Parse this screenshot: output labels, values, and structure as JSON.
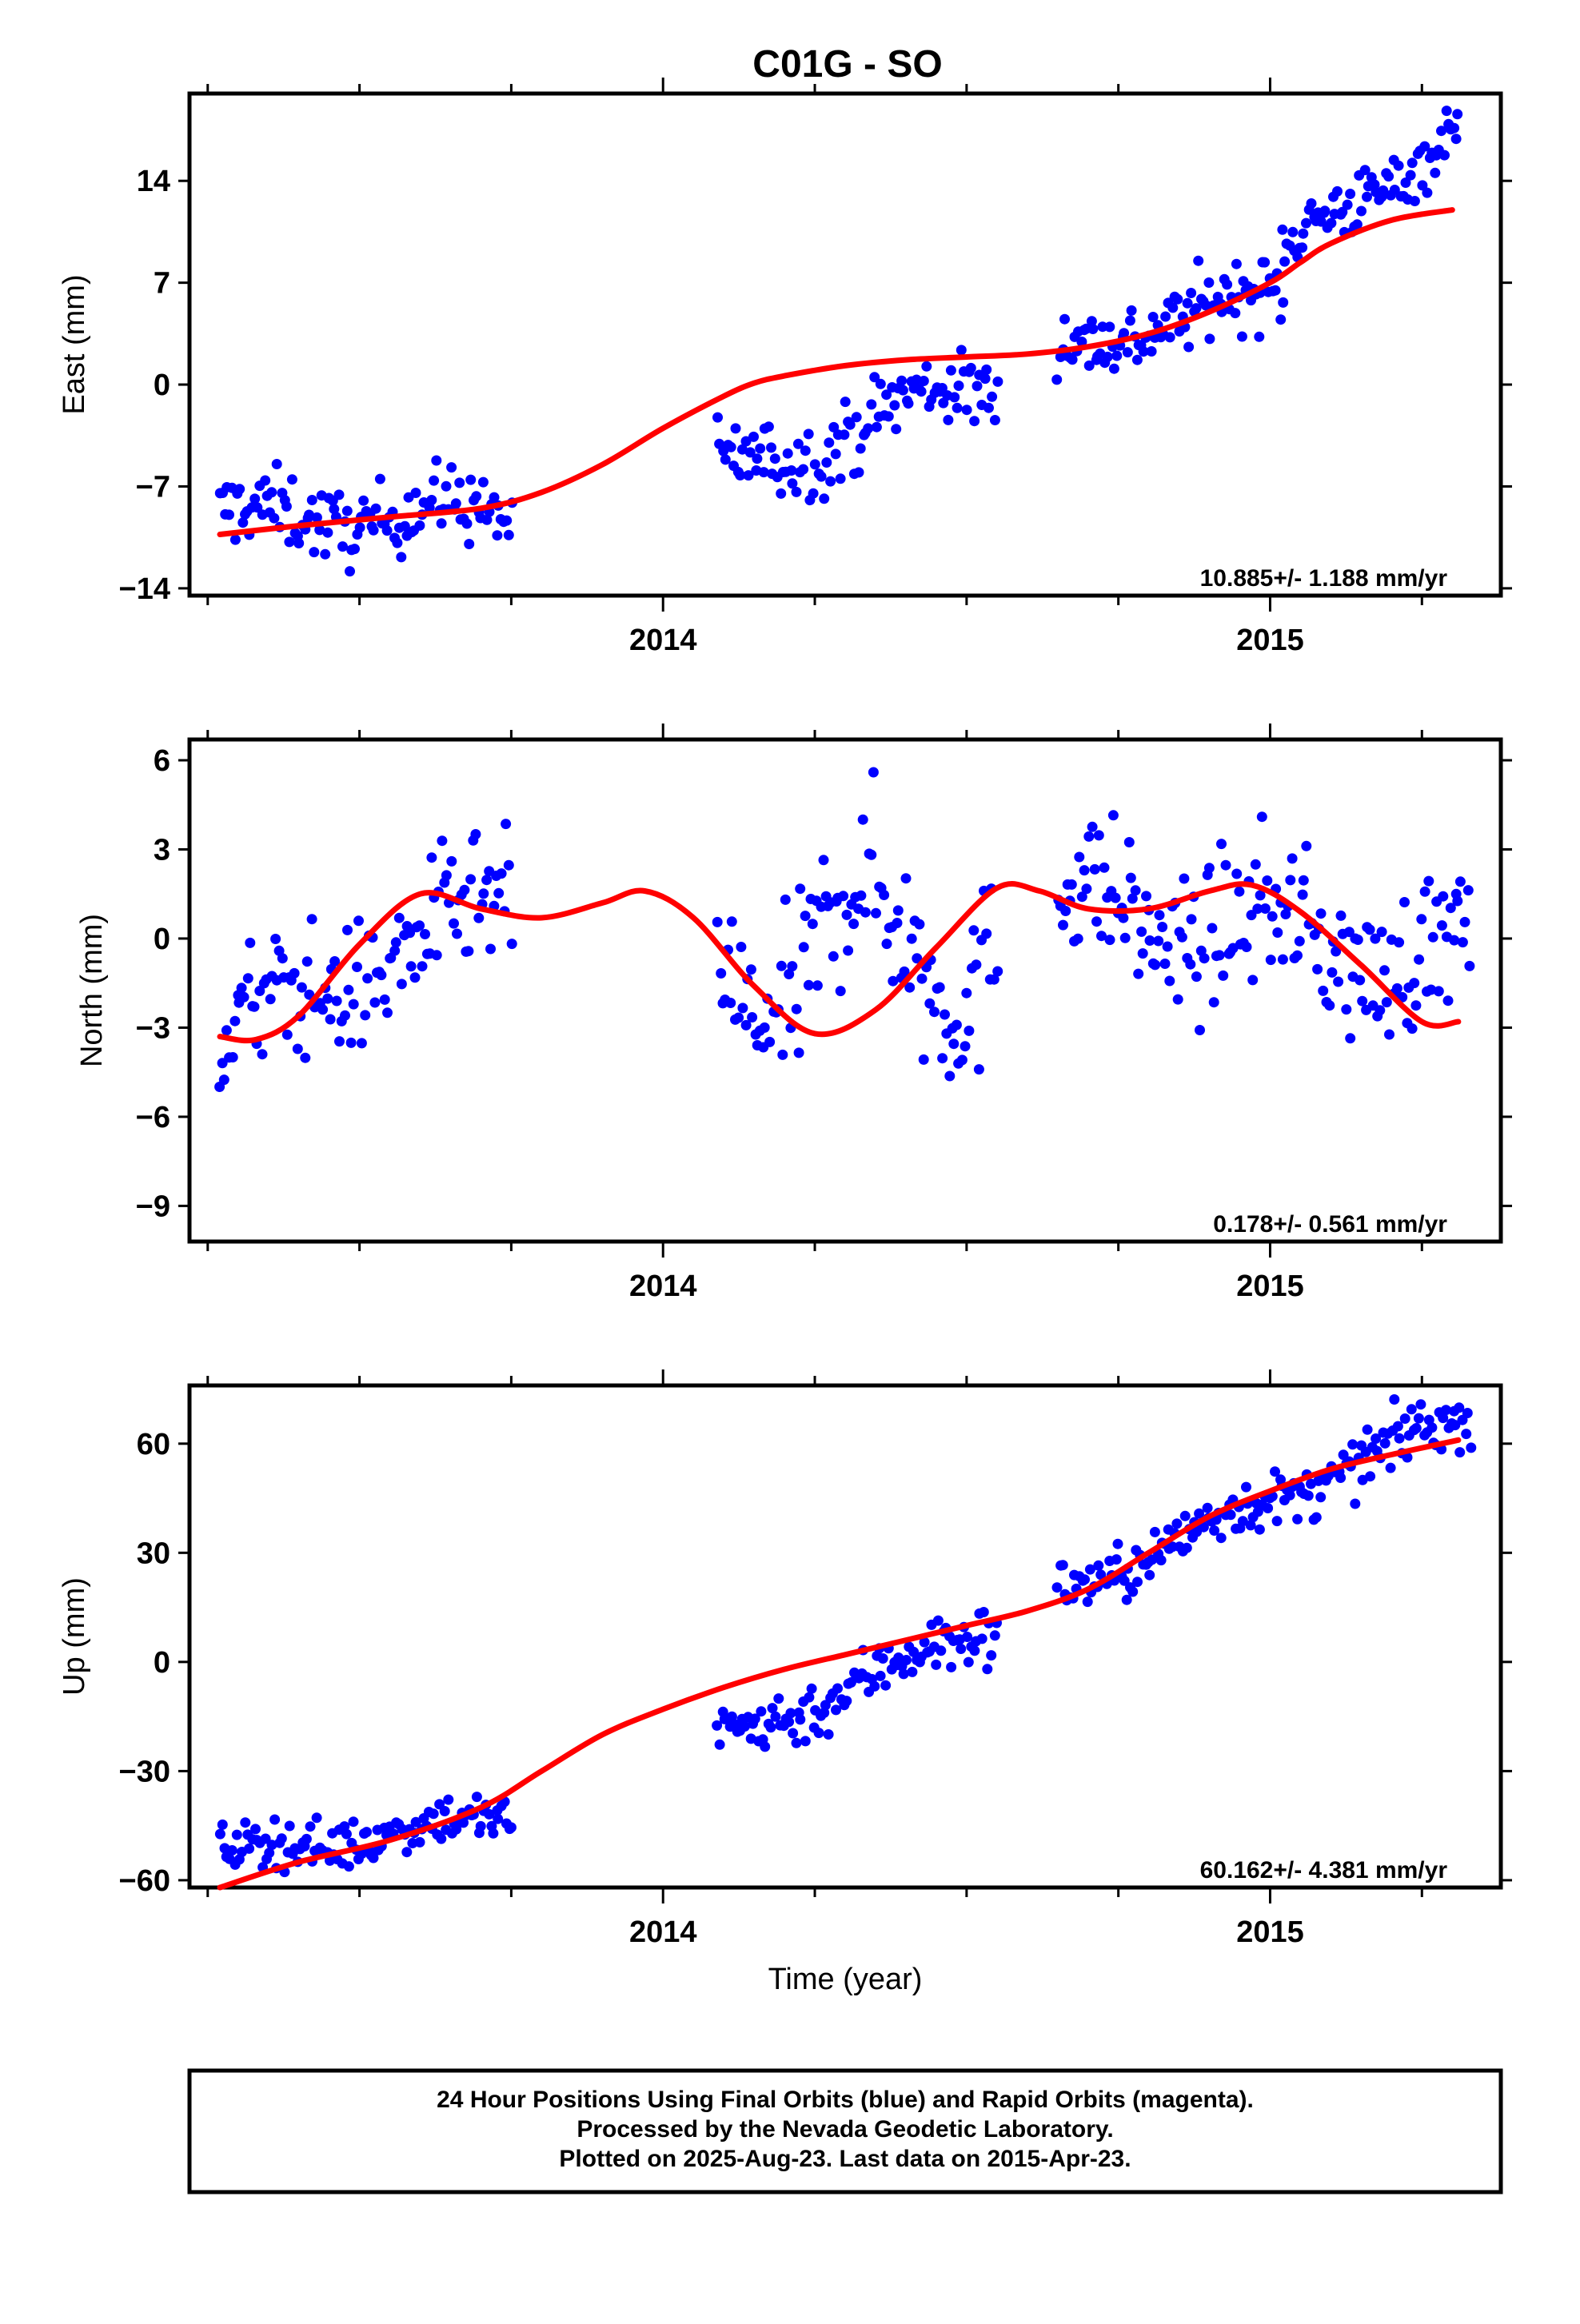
{
  "title": "C01G - SO",
  "x_axis_label": "Time (year)",
  "footer": {
    "line1": "24 Hour Positions Using Final Orbits (blue) and Rapid Orbits (magenta).",
    "line2": "Processed by the Nevada Geodetic Laboratory.",
    "line3": "Plotted on 2025-Aug-23. Last data on 2015-Apr-23."
  },
  "colors": {
    "final_orbits": "#0000ff",
    "rapid_orbits": "#ff00ff",
    "model_fit": "#ff0000",
    "frame": "#000000"
  },
  "chart_data": [
    {
      "type": "scatter",
      "name": "east",
      "ylabel": "East (mm)",
      "xlabel": "",
      "xlim": [
        2013.22,
        2015.38
      ],
      "ylim": [
        -14.5,
        20
      ],
      "yticks": [
        -14,
        -7,
        0,
        7,
        14
      ],
      "xticks": [
        2014,
        2015
      ],
      "rate_text": "10.885+/- 1.188 mm/yr",
      "series": [
        {
          "role": "observations-final-orbits",
          "segments": [
            {
              "x": [
                2013.27,
                2013.75
              ],
              "y0": -9.2,
              "slope": 0.8,
              "amp": 0.9,
              "phase": 0.4,
              "noise": 1.3,
              "n": 118
            },
            {
              "x": [
                2014.09,
                2014.55
              ],
              "y0": -6.4,
              "slope": 15.0,
              "amp": 1.1,
              "phase": 1.4,
              "noise": 1.3,
              "n": 112
            },
            {
              "x": [
                2014.65,
                2015.02
              ],
              "y0": 2.5,
              "slope": 10.5,
              "amp": 0.7,
              "phase": 2.2,
              "noise": 1.2,
              "n": 95
            },
            {
              "x": [
                2015.02,
                2015.31
              ],
              "y0": 9.2,
              "slope": 28.0,
              "amp": 0.6,
              "phase": 0.9,
              "noise": 1.1,
              "n": 74
            }
          ]
        },
        {
          "role": "model-fit",
          "x": [
            2013.27,
            2013.4,
            2013.55,
            2013.7,
            2013.8,
            2013.9,
            2014.0,
            2014.1,
            2014.15,
            2014.2,
            2014.3,
            2014.4,
            2014.5,
            2014.6,
            2014.7,
            2014.8,
            2014.9,
            2015.0,
            2015.05,
            2015.1,
            2015.2,
            2015.3
          ],
          "y": [
            -10.3,
            -9.7,
            -9.1,
            -8.5,
            -7.4,
            -5.5,
            -3.0,
            -0.8,
            0.1,
            0.6,
            1.3,
            1.7,
            1.9,
            2.1,
            2.6,
            3.5,
            5.0,
            7.0,
            8.4,
            9.7,
            11.3,
            12.0
          ]
        }
      ]
    },
    {
      "type": "scatter",
      "name": "north",
      "ylabel": "North (mm)",
      "xlabel": "",
      "xlim": [
        2013.22,
        2015.38
      ],
      "ylim": [
        -10.2,
        6.7
      ],
      "yticks": [
        -9,
        -6,
        -3,
        0,
        3,
        6
      ],
      "xticks": [
        2014,
        2015
      ],
      "rate_text": "0.178+/- 0.561 mm/yr",
      "series": [
        {
          "role": "observations-final-orbits",
          "segments": [
            {
              "x": [
                2013.27,
                2013.75
              ],
              "y0": -3.3,
              "slope": 9.5,
              "amp": 0.6,
              "phase": 0.0,
              "noise": 1.1,
              "n": 118
            },
            {
              "x": [
                2014.09,
                2014.55
              ],
              "y0": -0.8,
              "slope": 2.0,
              "amp": 2.3,
              "phase": 3.1,
              "noise": 1.5,
              "n": 112
            },
            {
              "x": [
                2014.65,
                2015.33
              ],
              "y0": 1.2,
              "slope": -3.0,
              "amp": 1.0,
              "phase": 0.7,
              "noise": 1.2,
              "n": 170
            }
          ]
        },
        {
          "role": "model-fit",
          "x": [
            2013.27,
            2013.33,
            2013.4,
            2013.5,
            2013.6,
            2013.7,
            2013.8,
            2013.9,
            2013.97,
            2014.05,
            2014.15,
            2014.25,
            2014.35,
            2014.45,
            2014.55,
            2014.62,
            2014.7,
            2014.8,
            2014.9,
            2014.97,
            2015.05,
            2015.15,
            2015.25,
            2015.31
          ],
          "y": [
            -3.3,
            -3.4,
            -2.6,
            -0.2,
            1.5,
            1.0,
            0.7,
            1.2,
            1.6,
            0.7,
            -1.6,
            -3.2,
            -2.4,
            -0.3,
            1.7,
            1.6,
            1.0,
            1.0,
            1.6,
            1.8,
            0.9,
            -0.9,
            -2.8,
            -2.8
          ]
        }
      ]
    },
    {
      "type": "scatter",
      "name": "up",
      "ylabel": "Up (mm)",
      "xlabel": "Time (year)",
      "xlim": [
        2013.22,
        2015.38
      ],
      "ylim": [
        -62,
        76
      ],
      "yticks": [
        -60,
        -30,
        0,
        30,
        60
      ],
      "xticks": [
        2014,
        2015
      ],
      "rate_text": "60.162+/- 4.381 mm/yr",
      "series": [
        {
          "role": "observations-final-orbits",
          "segments": [
            {
              "x": [
                2013.27,
                2013.75
              ],
              "y0": -53.0,
              "slope": 22.0,
              "amp": 2.0,
              "phase": 0.5,
              "noise": 3.4,
              "n": 118
            },
            {
              "x": [
                2014.09,
                2014.55
              ],
              "y0": -22.0,
              "slope": 70.0,
              "amp": 2.5,
              "phase": 1.6,
              "noise": 4.2,
              "n": 112
            },
            {
              "x": [
                2014.65,
                2015.33
              ],
              "y0": 19.0,
              "slope": 72.0,
              "amp": 2.5,
              "phase": 2.4,
              "noise": 3.8,
              "n": 170
            }
          ]
        },
        {
          "role": "model-fit",
          "x": [
            2013.27,
            2013.4,
            2013.55,
            2013.7,
            2013.8,
            2013.9,
            2014.0,
            2014.1,
            2014.2,
            2014.3,
            2014.4,
            2014.5,
            2014.6,
            2014.7,
            2014.8,
            2014.9,
            2015.0,
            2015.1,
            2015.2,
            2015.31
          ],
          "y": [
            -62.0,
            -55.0,
            -49.0,
            -40.0,
            -30.0,
            -20.0,
            -13.0,
            -7.0,
            -2.0,
            2.0,
            6.0,
            10.0,
            14.0,
            20.0,
            30.0,
            40.0,
            47.0,
            53.0,
            57.0,
            61.0
          ]
        }
      ]
    }
  ]
}
